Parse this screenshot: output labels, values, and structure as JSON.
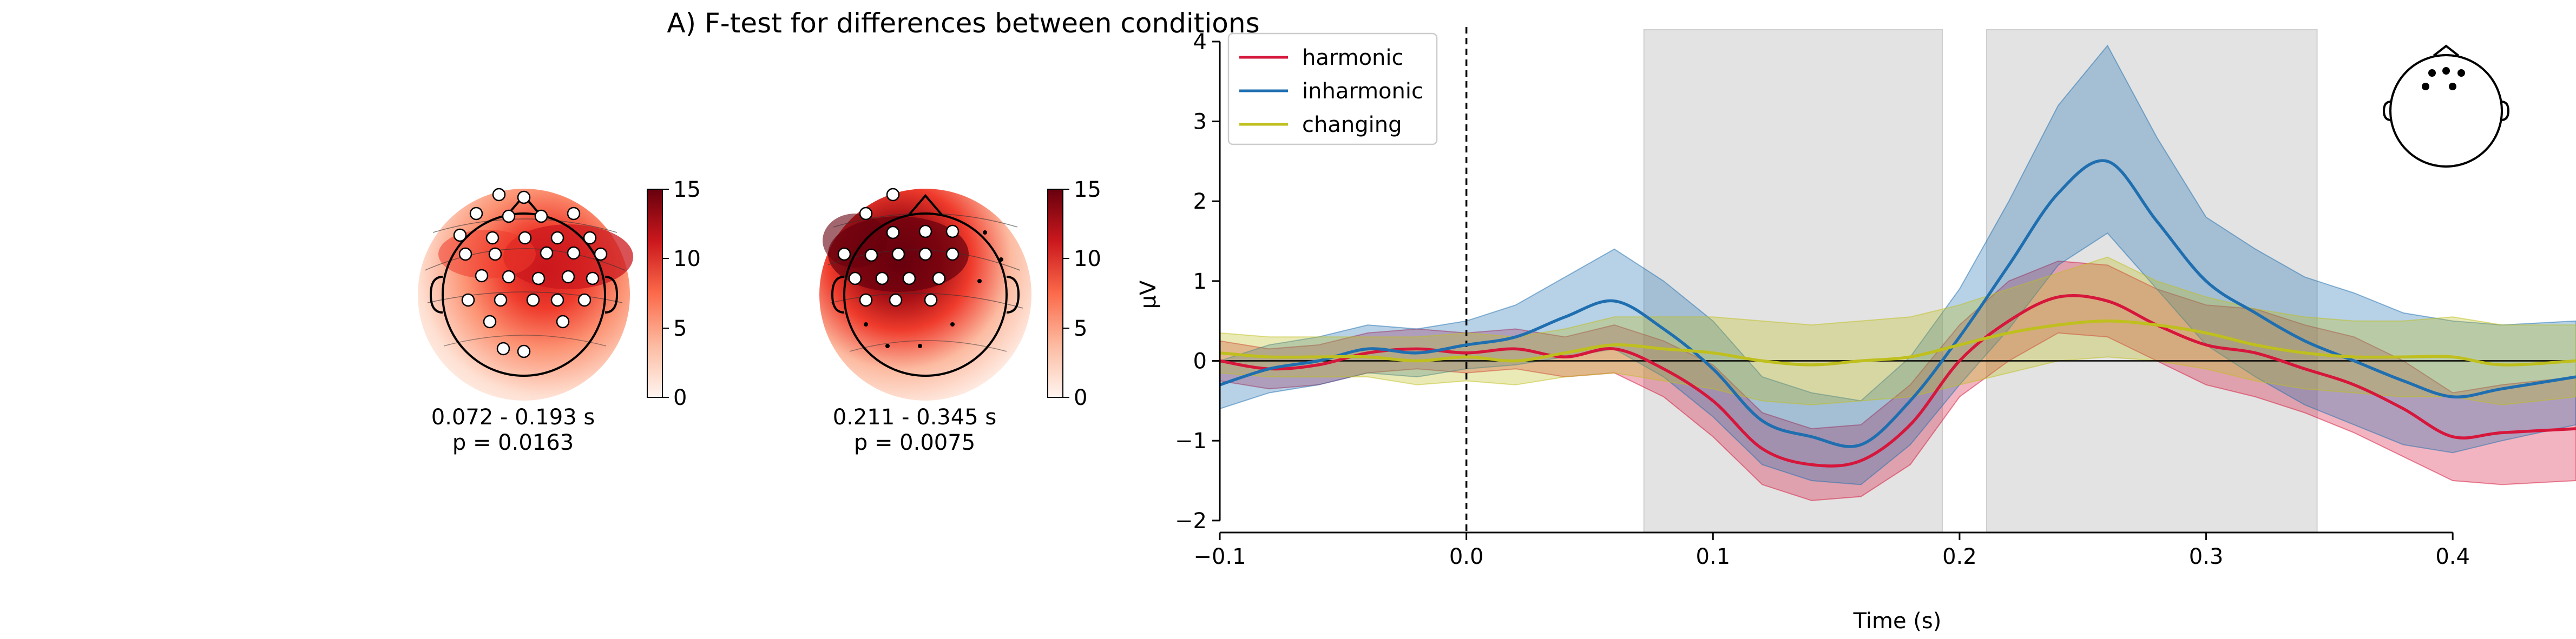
{
  "figure": {
    "title": "A) F-test for differences between conditions"
  },
  "topomaps": [
    {
      "time_window": "0.072 - 0.193 s",
      "p_value": "p = 0.0163",
      "colorbar_ticks": [
        "0",
        "5",
        "10",
        "15"
      ]
    },
    {
      "time_window": "0.211 - 0.345 s",
      "p_value": "p = 0.0075",
      "colorbar_ticks": [
        "0",
        "5",
        "10",
        "15"
      ]
    }
  ],
  "colors": {
    "harmonic": "#d6163b",
    "inharmonic": "#1f6fb0",
    "changing": "#bfbf1e",
    "shade": "#e3e3e3",
    "colormap_max": "#67000d",
    "colormap_min": "#fff5f0"
  },
  "chart_data": {
    "type": "line",
    "title": "",
    "xlabel": "Time (s)",
    "ylabel": "µV",
    "xlim": [
      -0.1,
      0.45
    ],
    "ylim": [
      -2.15,
      4.25
    ],
    "xticks": [
      -0.1,
      0.0,
      0.1,
      0.2,
      0.3,
      0.4
    ],
    "xtick_labels": [
      "−0.1",
      "0.0",
      "0.1",
      "0.2",
      "0.3",
      "0.4"
    ],
    "yticks": [
      -2,
      -1,
      0,
      1,
      2,
      3,
      4
    ],
    "ytick_labels": [
      "−2",
      "−1",
      "0",
      "1",
      "2",
      "3",
      "4"
    ],
    "legend_position": "top-left",
    "grid": false,
    "significant_windows": [
      [
        0.072,
        0.193
      ],
      [
        0.211,
        0.345
      ]
    ],
    "event_line_x": 0.0,
    "x": [
      -0.1,
      -0.08,
      -0.06,
      -0.04,
      -0.02,
      0.0,
      0.02,
      0.04,
      0.06,
      0.08,
      0.1,
      0.12,
      0.14,
      0.16,
      0.18,
      0.2,
      0.22,
      0.24,
      0.26,
      0.28,
      0.3,
      0.32,
      0.34,
      0.36,
      0.38,
      0.4,
      0.42,
      0.45
    ],
    "series": [
      {
        "name": "harmonic",
        "values": [
          0.0,
          -0.1,
          -0.05,
          0.1,
          0.15,
          0.1,
          0.15,
          0.05,
          0.15,
          -0.1,
          -0.5,
          -1.1,
          -1.3,
          -1.25,
          -0.8,
          0.0,
          0.5,
          0.8,
          0.75,
          0.45,
          0.2,
          0.1,
          -0.1,
          -0.3,
          -0.6,
          -0.95,
          -0.9,
          -0.85
        ],
        "lower": [
          -0.25,
          -0.35,
          -0.3,
          -0.15,
          -0.1,
          -0.15,
          -0.1,
          -0.2,
          -0.15,
          -0.45,
          -0.95,
          -1.55,
          -1.75,
          -1.7,
          -1.3,
          -0.45,
          0.0,
          0.35,
          0.3,
          0.0,
          -0.3,
          -0.45,
          -0.65,
          -0.9,
          -1.2,
          -1.5,
          -1.55,
          -1.5
        ],
        "upper": [
          0.25,
          0.15,
          0.2,
          0.35,
          0.4,
          0.35,
          0.4,
          0.3,
          0.45,
          0.25,
          -0.05,
          -0.65,
          -0.85,
          -0.8,
          -0.3,
          0.45,
          1.0,
          1.25,
          1.2,
          0.9,
          0.7,
          0.65,
          0.45,
          0.3,
          0.0,
          -0.4,
          -0.3,
          -0.2
        ]
      },
      {
        "name": "inharmonic",
        "values": [
          -0.3,
          -0.1,
          0.0,
          0.15,
          0.1,
          0.2,
          0.3,
          0.55,
          0.75,
          0.4,
          -0.1,
          -0.75,
          -0.95,
          -1.05,
          -0.5,
          0.3,
          1.2,
          2.1,
          2.5,
          1.75,
          1.0,
          0.6,
          0.25,
          0.0,
          -0.25,
          -0.45,
          -0.35,
          -0.2
        ],
        "lower": [
          -0.6,
          -0.4,
          -0.3,
          -0.15,
          -0.2,
          -0.1,
          -0.05,
          0.05,
          0.15,
          -0.2,
          -0.7,
          -1.3,
          -1.5,
          -1.55,
          -1.05,
          -0.3,
          0.4,
          1.2,
          1.6,
          0.9,
          0.2,
          -0.2,
          -0.55,
          -0.8,
          -1.05,
          -1.15,
          -1.0,
          -0.8
        ],
        "upper": [
          0.0,
          0.2,
          0.3,
          0.45,
          0.4,
          0.5,
          0.7,
          1.05,
          1.4,
          1.0,
          0.5,
          -0.2,
          -0.4,
          -0.5,
          0.05,
          0.9,
          2.0,
          3.2,
          3.95,
          2.8,
          1.8,
          1.4,
          1.05,
          0.85,
          0.6,
          0.5,
          0.45,
          0.5
        ]
      },
      {
        "name": "changing",
        "values": [
          0.1,
          0.05,
          0.05,
          0.05,
          0.0,
          0.05,
          0.0,
          0.1,
          0.2,
          0.15,
          0.1,
          0.0,
          -0.05,
          0.0,
          0.05,
          0.2,
          0.35,
          0.45,
          0.5,
          0.45,
          0.35,
          0.2,
          0.1,
          0.05,
          0.05,
          0.05,
          -0.05,
          0.0
        ],
        "lower": [
          -0.15,
          -0.2,
          -0.2,
          -0.2,
          -0.3,
          -0.25,
          -0.3,
          -0.2,
          -0.15,
          -0.25,
          -0.35,
          -0.5,
          -0.55,
          -0.5,
          -0.45,
          -0.3,
          -0.15,
          0.0,
          0.05,
          0.0,
          -0.1,
          -0.25,
          -0.35,
          -0.4,
          -0.45,
          -0.45,
          -0.55,
          -0.45
        ],
        "upper": [
          0.35,
          0.3,
          0.3,
          0.3,
          0.3,
          0.35,
          0.3,
          0.4,
          0.55,
          0.55,
          0.55,
          0.5,
          0.45,
          0.5,
          0.55,
          0.7,
          0.9,
          1.1,
          1.3,
          1.0,
          0.8,
          0.65,
          0.55,
          0.5,
          0.5,
          0.55,
          0.45,
          0.45
        ]
      }
    ]
  }
}
